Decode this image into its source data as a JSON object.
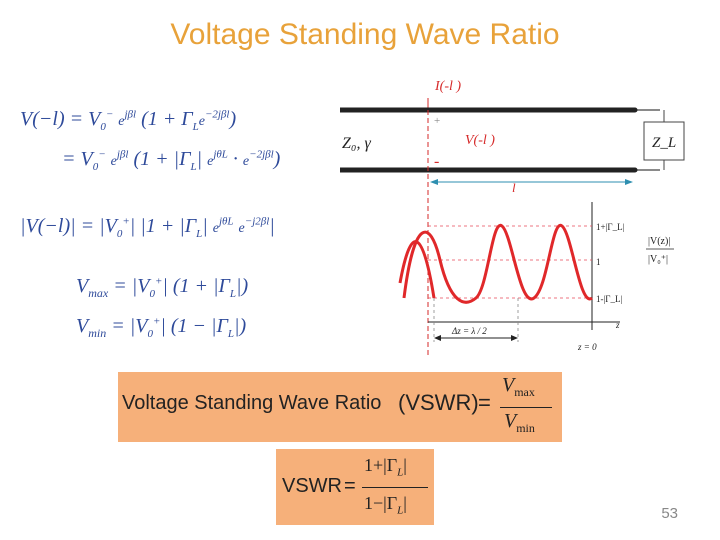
{
  "title": "Voltage Standing Wave Ratio",
  "slide_number": "53",
  "circuit": {
    "current_label": "I(-l )",
    "voltage_label": "V(-l )",
    "line_params": "Z₀, γ",
    "load": "Z_L",
    "length_label": "l",
    "plus": "+",
    "minus": "-"
  },
  "plot": {
    "level_top": "1+|Γ_L|",
    "level_mid": "1",
    "level_bot": "1-|Γ_L|",
    "ratio_num": "|V(z)|",
    "ratio_den": "|V₀⁺|",
    "spacing": "Δz = λ / 2",
    "axis_z": "z",
    "origin": "z = 0"
  },
  "equations": {
    "line1": "V(−l) = V₀⁻ e^{jβl} (1 + Γ_L e^{−2jβl})",
    "line2": "= V₀⁻ e^{jβl} (1 + |Γ_L| e^{jθ_L} · e^{−2jβl})",
    "line3": "|V(−l)| = |V₀⁺| |1 + |Γ_L| e^{jθ_L} e^{−j2βl}|",
    "vmax": "V_max = |V₀⁺| (1 + |Γ_L|)",
    "vmin": "V_min = |V₀⁺| (1 − |Γ_L|)"
  },
  "vswr_def": {
    "text": "Voltage Standing Wave Ratio",
    "abbr": "(VSWR)",
    "num": "V_max",
    "den": "V_min"
  },
  "vswr_formula": {
    "lhs": "VSWR",
    "num": "1+|Γ_L|",
    "den": "1−|Γ_L|"
  },
  "colors": {
    "title": "#E8A23A",
    "equation": "#2E4A9A",
    "box": "#F6B07A",
    "wave": "#E0282A",
    "guide": "#E84A5A"
  }
}
